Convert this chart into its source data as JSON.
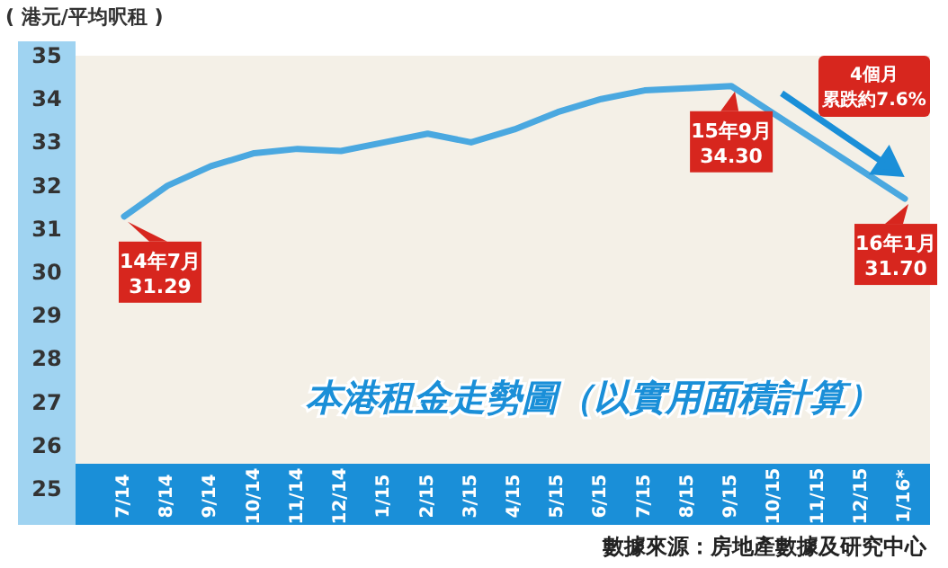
{
  "chart_data": {
    "type": "line",
    "title": "本港租金走勢圖（以實用面積計算）",
    "ylabel": "( 港元/平均呎租 )",
    "categories": [
      "7/14",
      "8/14",
      "9/14",
      "10/14",
      "11/14",
      "12/14",
      "1/15",
      "2/15",
      "3/15",
      "4/15",
      "5/15",
      "6/15",
      "7/15",
      "8/15",
      "9/15",
      "10/15",
      "11/15",
      "12/15",
      "1/16*"
    ],
    "series": [
      {
        "color": "#4aa8e0",
        "values": [
          31.29,
          32.0,
          32.45,
          32.75,
          32.85,
          32.8,
          33.0,
          33.2,
          33.0,
          33.3,
          33.7,
          34.0,
          34.2,
          34.25,
          34.3,
          33.65,
          33.0,
          32.35,
          31.7
        ]
      }
    ],
    "ylim": [
      25,
      35
    ],
    "yticks": [
      25,
      26,
      27,
      28,
      29,
      30,
      31,
      32,
      33,
      34,
      35
    ],
    "grid": false,
    "annotations": [
      {
        "text": "14年7月\n31.29",
        "x": "7/14",
        "y": 31.29
      },
      {
        "text": "15年9月\n34.30",
        "x": "9/15",
        "y": 34.3
      },
      {
        "text": "16年1月\n31.70",
        "x": "1/16*",
        "y": 31.7
      },
      "4個月",
      "累跌約7.6%",
      "數據來源：房地產數據及研究中心"
    ]
  }
}
